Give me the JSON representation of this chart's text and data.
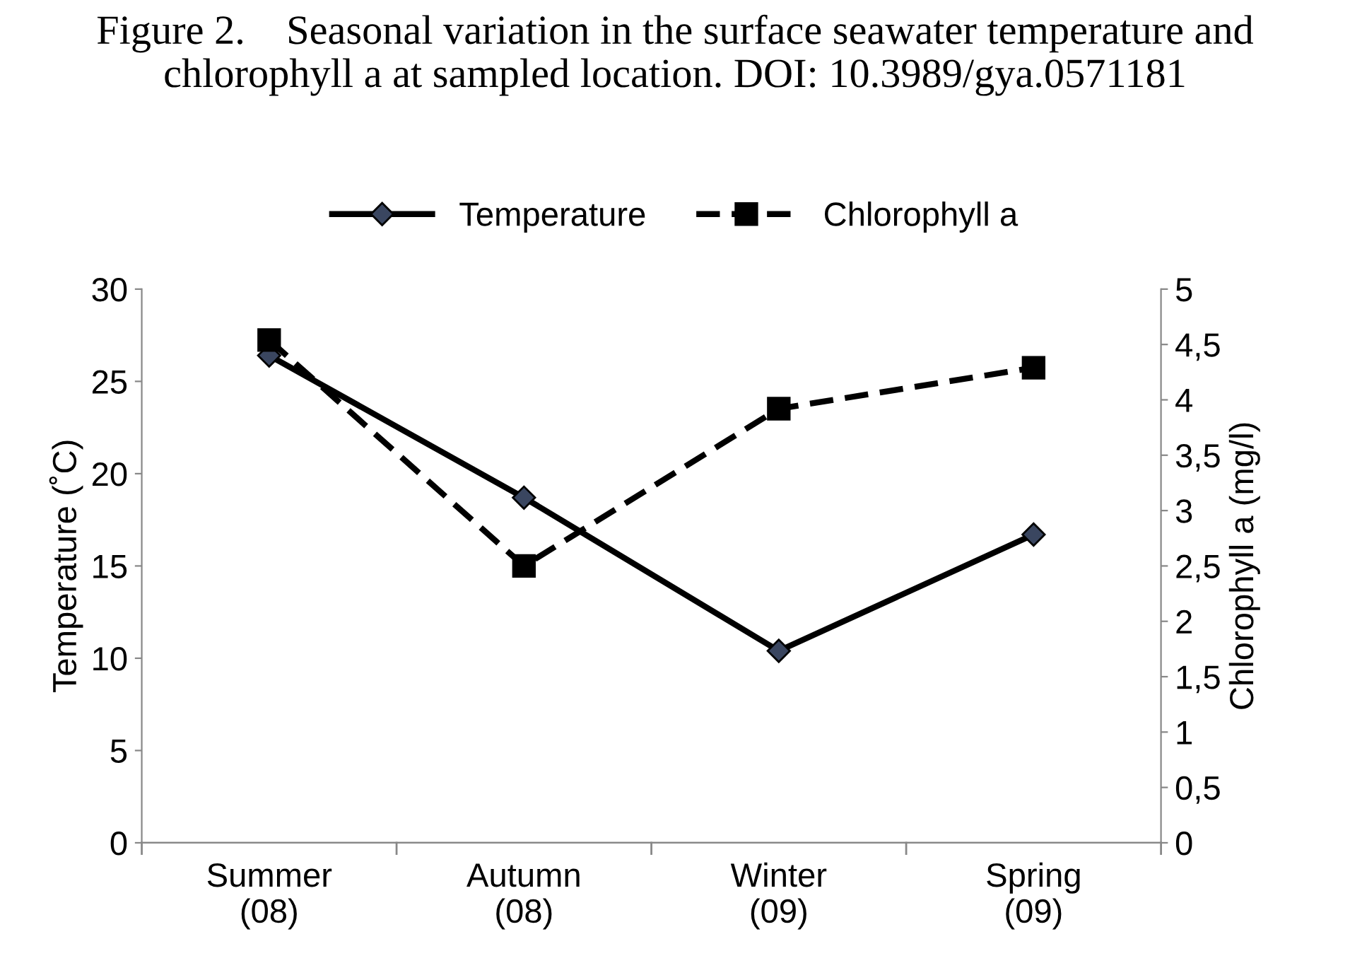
{
  "chart_data": {
    "type": "line",
    "title": "Figure 2.    Seasonal variation in the surface seawater temperature and chlorophyll a at sampled location. DOI: 10.3989/gya.0571181",
    "categories": [
      "Summer\n(08)",
      "Autumn\n(08)",
      "Winter\n(09)",
      "Spring\n(09)"
    ],
    "series": [
      {
        "name": "Temperature",
        "color": "#000000",
        "values": [
          26.4,
          18.7,
          10.4,
          16.7
        ],
        "marker": "diamond",
        "line_style": "solid"
      },
      {
        "name": "Chlorophyll a",
        "color": "#000000",
        "values": [
          4.54,
          2.5,
          3.92,
          4.29
        ],
        "marker": "square",
        "line_style": "dashed",
        "axis": "y2"
      }
    ],
    "ylabel": "Temperature (˚C)",
    "y2label": "Chlorophyll a (mg/l)",
    "ylim": [
      0,
      30
    ],
    "yticks": [
      0,
      5,
      10,
      15,
      20,
      25,
      30
    ],
    "y2lim": [
      0,
      5
    ],
    "y2ticks": [
      0,
      {
        "value": 0.5,
        "label": "0,5"
      },
      1,
      {
        "value": 1.5,
        "label": "1,5"
      },
      2,
      {
        "value": 2.5,
        "label": "2,5"
      },
      3,
      {
        "value": 3.5,
        "label": "3,5"
      },
      4,
      {
        "value": 4.5,
        "label": "4,5"
      },
      5
    ],
    "legend": "top",
    "grid": false
  }
}
